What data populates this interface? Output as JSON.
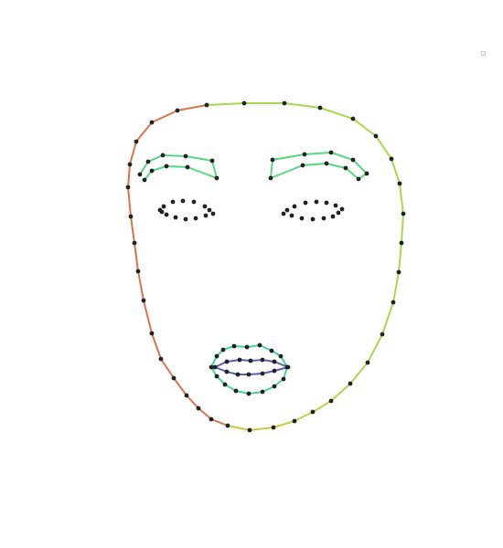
{
  "diagram": {
    "kind": "facial-landmark-mesh",
    "colors": {
      "background": "#ffffff",
      "points": "#222222",
      "jaw_left": "#d8744f",
      "jaw_chin": "#c9c94a",
      "jaw_right": "#a9d84e",
      "forehead_left": "#d8744f",
      "forehead_right": "#98dd59",
      "brows": "#57d77f",
      "lips_outer": "#49d29c",
      "lips_inner": "#5a5fb0",
      "eyes": "#222222"
    },
    "regions": [
      "face-outline",
      "left-eyebrow",
      "right-eyebrow",
      "left-eye",
      "right-eye",
      "outer-lips",
      "inner-lips"
    ]
  }
}
